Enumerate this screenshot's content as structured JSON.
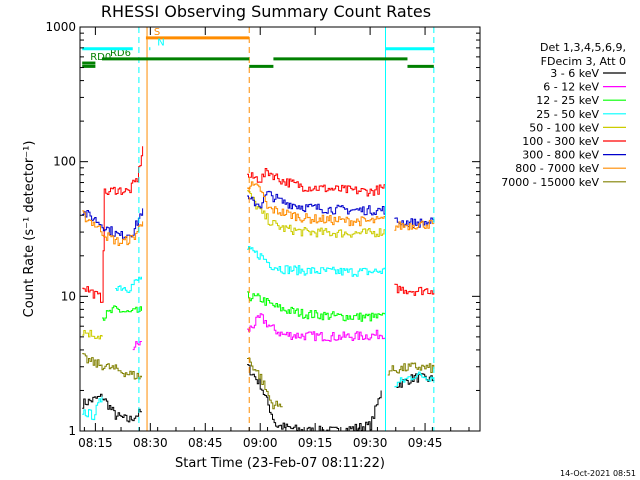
{
  "chart_data": {
    "type": "line",
    "title": "RHESSI Observing Summary Count Rates",
    "xlabel": "Start Time (23-Feb-07 08:11:22)",
    "ylabel": "Count Rate (s⁻¹ detector⁻¹)",
    "yscale": "log",
    "ylim": [
      1,
      1000
    ],
    "xlim_minutes": [
      8.18,
      10.0
    ],
    "x_unit": "hours",
    "x_ticks": [
      "08:15",
      "08:30",
      "08:45",
      "09:00",
      "09:15",
      "09:30",
      "09:45"
    ],
    "x_tick_values": [
      8.25,
      8.5,
      8.75,
      9.0,
      9.25,
      9.5,
      9.75
    ],
    "y_ticks": [
      "1",
      "10",
      "100",
      "1000"
    ],
    "y_tick_values": [
      1,
      10,
      100,
      1000
    ],
    "grid": false,
    "legend_position": "right",
    "legend_header": [
      "Det 1,3,4,5,6,9,",
      "FDecim 3, Att 0"
    ],
    "series": [
      {
        "name": "3 - 6 keV",
        "color": "#000000",
        "segments": [
          [
            [
              8.19,
              1.6
            ],
            [
              8.28,
              1.8
            ],
            [
              8.34,
              1.3
            ],
            [
              8.4,
              1.2
            ],
            [
              8.46,
              1.4
            ]
          ],
          [
            [
              8.94,
              3.0
            ],
            [
              9.0,
              2.2
            ],
            [
              9.07,
              1.1
            ],
            [
              9.2,
              1.0
            ],
            [
              9.35,
              1.0
            ],
            [
              9.5,
              1.1
            ],
            [
              9.55,
              2.0
            ]
          ],
          [
            [
              9.62,
              2.2
            ],
            [
              9.7,
              2.5
            ],
            [
              9.79,
              2.4
            ]
          ]
        ]
      },
      {
        "name": "6 - 12 keV",
        "color": "#ff00ff",
        "segments": [
          [
            [
              8.42,
              4.2
            ],
            [
              8.46,
              4.6
            ]
          ],
          [
            [
              8.94,
              5.5
            ],
            [
              9.0,
              7.0
            ],
            [
              9.05,
              5.8
            ],
            [
              9.1,
              5.2
            ],
            [
              9.2,
              5.1
            ],
            [
              9.35,
              5.0
            ],
            [
              9.5,
              5.1
            ],
            [
              9.57,
              5.3
            ]
          ]
        ]
      },
      {
        "name": "12 - 25 keV",
        "color": "#00ff00",
        "segments": [
          [
            [
              8.28,
              7.0
            ],
            [
              8.34,
              8.0
            ],
            [
              8.4,
              7.5
            ],
            [
              8.46,
              7.8
            ]
          ],
          [
            [
              8.94,
              10.0
            ],
            [
              9.0,
              9.6
            ],
            [
              9.05,
              8.6
            ],
            [
              9.1,
              8.0
            ],
            [
              9.2,
              7.4
            ],
            [
              9.35,
              7.1
            ],
            [
              9.5,
              7.0
            ],
            [
              9.57,
              7.0
            ]
          ]
        ]
      },
      {
        "name": "25 - 50 keV",
        "color": "#00ffff",
        "segments": [
          [
            [
              8.19,
              1.4
            ],
            [
              8.24,
              1.3
            ],
            [
              8.28,
              1.8
            ]
          ],
          [
            [
              8.34,
              12.0
            ],
            [
              8.4,
              11.5
            ],
            [
              8.46,
              14.0
            ]
          ],
          [
            [
              8.94,
              22.0
            ],
            [
              9.0,
              20.0
            ],
            [
              9.05,
              17.0
            ],
            [
              9.1,
              16.0
            ],
            [
              9.2,
              15.5
            ],
            [
              9.35,
              15.2
            ],
            [
              9.5,
              15.2
            ],
            [
              9.57,
              15.5
            ]
          ],
          [
            [
              9.61,
              2.2
            ],
            [
              9.7,
              2.6
            ],
            [
              9.79,
              2.5
            ]
          ]
        ]
      },
      {
        "name": "50 - 100 keV",
        "color": "#cccc00",
        "segments": [
          [
            [
              8.19,
              5.5
            ],
            [
              8.24,
              5.2
            ],
            [
              8.28,
              5.0
            ]
          ],
          [
            [
              8.94,
              60.0
            ],
            [
              9.0,
              42.0
            ],
            [
              9.05,
              35.0
            ],
            [
              9.1,
              32.0
            ],
            [
              9.2,
              30.0
            ],
            [
              9.35,
              29.5
            ],
            [
              9.5,
              29.5
            ],
            [
              9.57,
              30.5
            ]
          ]
        ]
      },
      {
        "name": "100 - 300 keV",
        "color": "#ff0000",
        "segments": [
          [
            [
              8.19,
              12.0
            ],
            [
              8.24,
              10.5
            ],
            [
              8.28,
              9.5
            ],
            [
              8.29,
              58.0
            ],
            [
              8.34,
              62.0
            ],
            [
              8.4,
              60.0
            ],
            [
              8.44,
              75.0
            ],
            [
              8.465,
              130.0
            ]
          ],
          [
            [
              8.94,
              78.0
            ],
            [
              9.0,
              74.0
            ],
            [
              9.03,
              85.0
            ],
            [
              9.1,
              72.0
            ],
            [
              9.2,
              65.0
            ],
            [
              9.35,
              62.0
            ],
            [
              9.5,
              60.0
            ],
            [
              9.57,
              64.0
            ]
          ],
          [
            [
              9.61,
              11.5
            ],
            [
              9.7,
              11.0
            ],
            [
              9.79,
              11.2
            ]
          ]
        ]
      },
      {
        "name": "300 - 800 keV",
        "color": "#0000cc",
        "segments": [
          [
            [
              8.19,
              42.0
            ],
            [
              8.24,
              38.0
            ],
            [
              8.3,
              32.0
            ],
            [
              8.36,
              28.0
            ],
            [
              8.42,
              30.0
            ],
            [
              8.465,
              45.0
            ]
          ],
          [
            [
              8.94,
              52.0
            ],
            [
              9.0,
              48.0
            ],
            [
              9.03,
              58.0
            ],
            [
              9.1,
              50.0
            ],
            [
              9.2,
              46.0
            ],
            [
              9.35,
              44.0
            ],
            [
              9.5,
              43.5
            ],
            [
              9.57,
              44.0
            ]
          ],
          [
            [
              9.61,
              36.0
            ],
            [
              9.7,
              35.0
            ],
            [
              9.79,
              35.5
            ]
          ]
        ]
      },
      {
        "name": "800 - 7000 keV",
        "color": "#ff8c00",
        "segments": [
          [
            [
              8.19,
              40.0
            ],
            [
              8.24,
              35.0
            ],
            [
              8.3,
              28.0
            ],
            [
              8.36,
              25.0
            ],
            [
              8.42,
              27.0
            ],
            [
              8.465,
              36.0
            ]
          ],
          [
            [
              8.94,
              68.0
            ],
            [
              9.0,
              62.0
            ],
            [
              9.03,
              45.0
            ],
            [
              9.1,
              42.0
            ],
            [
              9.2,
              38.0
            ],
            [
              9.35,
              36.5
            ],
            [
              9.5,
              36.0
            ],
            [
              9.57,
              37.0
            ]
          ],
          [
            [
              9.61,
              33.0
            ],
            [
              9.7,
              34.0
            ],
            [
              9.79,
              34.5
            ]
          ]
        ]
      },
      {
        "name": "7000 - 15000 keV",
        "color": "#808000",
        "segments": [
          [
            [
              8.19,
              3.5
            ],
            [
              8.24,
              3.2
            ],
            [
              8.3,
              3.0
            ],
            [
              8.36,
              2.8
            ],
            [
              8.42,
              2.6
            ],
            [
              8.46,
              2.5
            ]
          ],
          [
            [
              8.94,
              3.5
            ],
            [
              9.0,
              2.5
            ],
            [
              9.05,
              1.6
            ],
            [
              9.1,
              1.5
            ]
          ],
          [
            [
              9.58,
              2.8
            ],
            [
              9.7,
              3.0
            ],
            [
              9.79,
              2.9
            ]
          ]
        ]
      }
    ],
    "flags": [
      {
        "label": "RD0",
        "color": "#008000",
        "level": 540,
        "segments": [
          [
            8.19,
            8.25
          ]
        ]
      },
      {
        "label": "RD6",
        "color": "#008000",
        "level": 580,
        "segments": [
          [
            8.28,
            8.95
          ],
          [
            9.06,
            9.67
          ]
        ]
      },
      {
        "label": "",
        "color": "#008000",
        "level": 510,
        "segments": [
          [
            8.19,
            8.25
          ],
          [
            8.95,
            9.06
          ],
          [
            9.67,
            9.79
          ]
        ]
      },
      {
        "label": "",
        "color": "#00ffff",
        "level": 690,
        "segments": [
          [
            8.19,
            8.42
          ],
          [
            9.57,
            9.79
          ]
        ]
      },
      {
        "label": "S",
        "color": "#ff8c00",
        "level": 830,
        "segments": [
          [
            8.48,
            8.95
          ]
        ]
      },
      {
        "label": "N",
        "color": "#00ffff",
        "level": 690,
        "segments": [
          [
            8.495,
            8.5
          ]
        ]
      }
    ],
    "vlines": [
      {
        "x": 8.448,
        "color": "#00ffff",
        "style": "dashed"
      },
      {
        "x": 8.485,
        "color": "#ff8c00",
        "style": "solid"
      },
      {
        "x": 8.95,
        "color": "#ff8c00",
        "style": "dashed"
      },
      {
        "x": 9.57,
        "color": "#00ffff",
        "style": "solid"
      },
      {
        "x": 9.79,
        "color": "#00ffff",
        "style": "dashed"
      }
    ],
    "footer_timestamp": "14-Oct-2021 08:51"
  }
}
